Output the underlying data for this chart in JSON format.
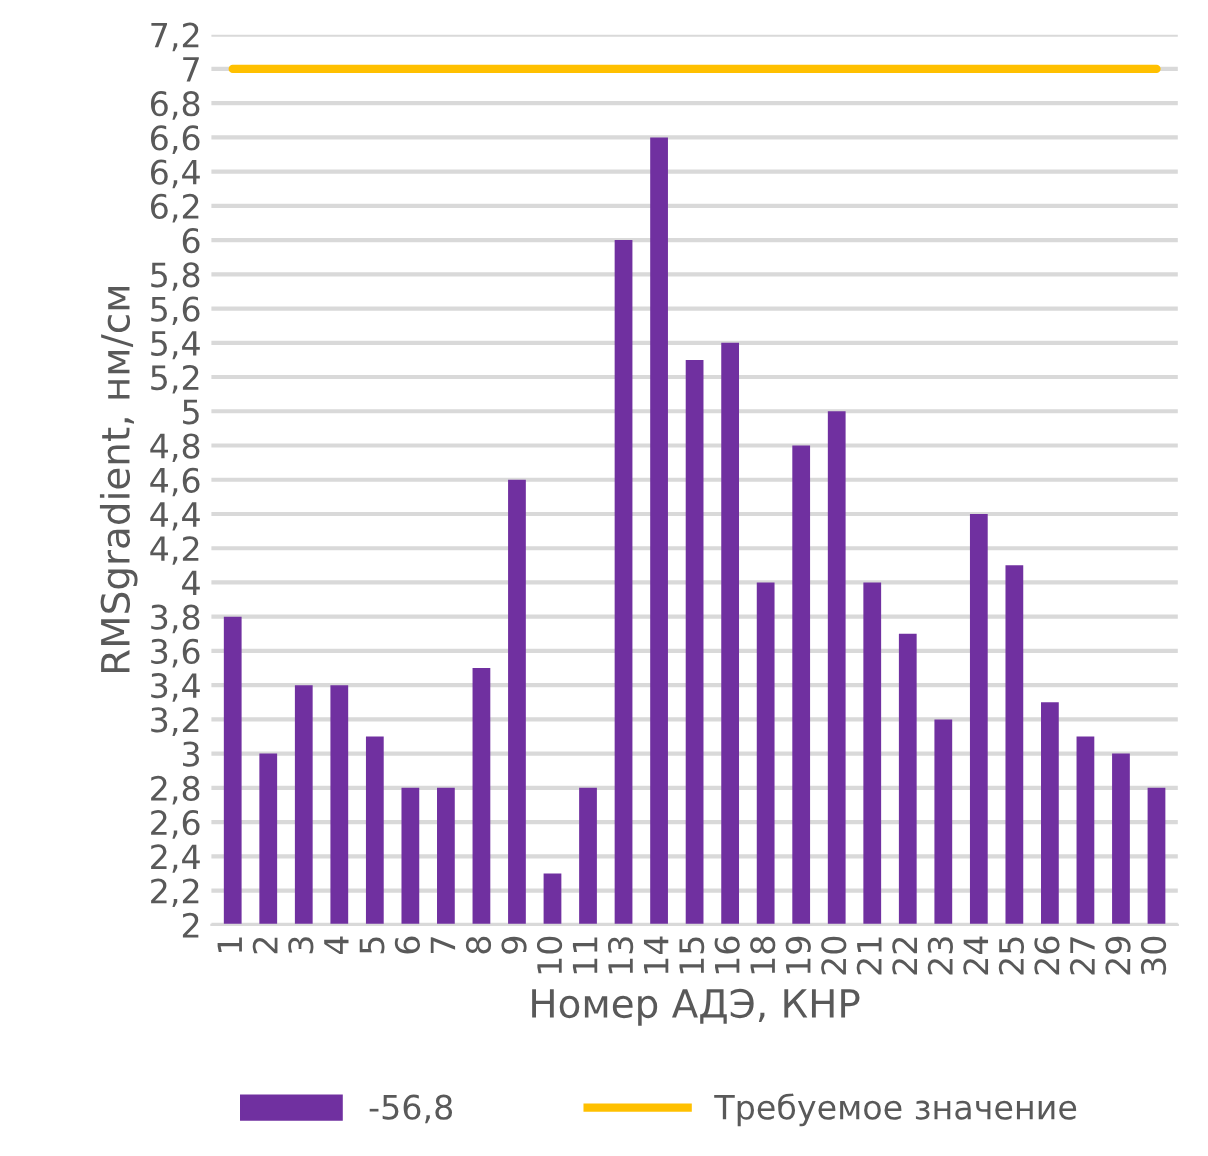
{
  "chart_data": {
    "type": "bar",
    "xlabel": "Номер АДЭ, КНР",
    "ylabel": "RMSgradient, нм/см",
    "categories": [
      "1",
      "2",
      "3",
      "4",
      "5",
      "6",
      "7",
      "8",
      "9",
      "10",
      "11",
      "13",
      "14",
      "15",
      "16",
      "18",
      "19",
      "20",
      "21",
      "22",
      "23",
      "24",
      "25",
      "26",
      "27",
      "29",
      "30"
    ],
    "series": [
      {
        "name": "-56,8",
        "color": "#7030a0",
        "values": [
          3.8,
          3.0,
          3.4,
          3.4,
          3.1,
          2.8,
          2.8,
          3.5,
          4.6,
          2.3,
          2.8,
          6.0,
          6.6,
          5.3,
          5.4,
          4.0,
          4.8,
          5.0,
          4.0,
          3.7,
          3.2,
          4.4,
          4.1,
          3.3,
          3.1,
          3.0,
          2.8
        ]
      },
      {
        "name": "Требуемое значение",
        "type": "line",
        "color": "#ffc000",
        "values": [
          7,
          7,
          7,
          7,
          7,
          7,
          7,
          7,
          7,
          7,
          7,
          7,
          7,
          7,
          7,
          7,
          7,
          7,
          7,
          7,
          7,
          7,
          7,
          7,
          7,
          7,
          7
        ]
      }
    ],
    "ylim": [
      2,
      7.2
    ],
    "yticks": [
      {
        "value": 2,
        "label": "2"
      },
      {
        "value": 2.2,
        "label": "2,2"
      },
      {
        "value": 2.4,
        "label": "2,4"
      },
      {
        "value": 2.6,
        "label": "2,6"
      },
      {
        "value": 2.8,
        "label": "2,8"
      },
      {
        "value": 3,
        "label": "3"
      },
      {
        "value": 3.2,
        "label": "3,2"
      },
      {
        "value": 3.4,
        "label": "3,4"
      },
      {
        "value": 3.6,
        "label": "3,6"
      },
      {
        "value": 3.8,
        "label": "3,8"
      },
      {
        "value": 4,
        "label": "4"
      },
      {
        "value": 4.2,
        "label": "4,2"
      },
      {
        "value": 4.4,
        "label": "4,4"
      },
      {
        "value": 4.6,
        "label": "4,6"
      },
      {
        "value": 4.8,
        "label": "4,8"
      },
      {
        "value": 5,
        "label": "5"
      },
      {
        "value": 5.2,
        "label": "5,2"
      },
      {
        "value": 5.4,
        "label": "5,4"
      },
      {
        "value": 5.6,
        "label": "5,6"
      },
      {
        "value": 5.8,
        "label": "5,8"
      },
      {
        "value": 6,
        "label": "6"
      },
      {
        "value": 6.2,
        "label": "6,2"
      },
      {
        "value": 6.4,
        "label": "6,4"
      },
      {
        "value": 6.6,
        "label": "6,6"
      },
      {
        "value": 6.8,
        "label": "6,8"
      },
      {
        "value": 7,
        "label": "7"
      },
      {
        "value": 7.2,
        "label": "7,2"
      }
    ],
    "grid": "y",
    "legend": "bottom"
  }
}
